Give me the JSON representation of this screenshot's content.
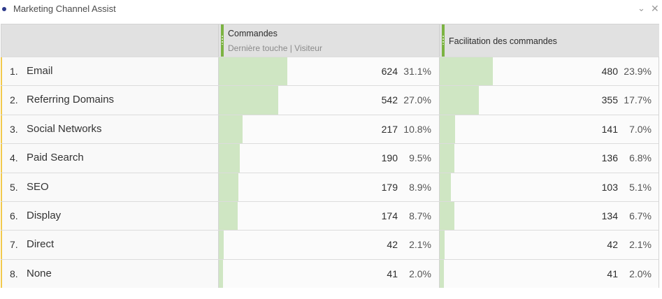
{
  "panel": {
    "title": "Marketing Channel Assist",
    "collapse_icon": "chevron-down-icon",
    "close_icon": "close-icon"
  },
  "columns": [
    {
      "title": "Commandes",
      "subtitle": "Dernière touche | Visiteur"
    },
    {
      "title": "Facilitation des commandes",
      "subtitle": ""
    }
  ],
  "colors": {
    "bar": "#cfe6c3",
    "accent": "#7cb342",
    "row_marker": "#f2c94c"
  },
  "rows": [
    {
      "rank": "1.",
      "label": "Email",
      "m1": "624",
      "m1_pct": "31.1%",
      "m2": "480",
      "m2_pct": "23.9%",
      "m1_share": 0.311,
      "m2_share": 0.239
    },
    {
      "rank": "2.",
      "label": "Referring Domains",
      "m1": "542",
      "m1_pct": "27.0%",
      "m2": "355",
      "m2_pct": "17.7%",
      "m1_share": 0.27,
      "m2_share": 0.177
    },
    {
      "rank": "3.",
      "label": "Social Networks",
      "m1": "217",
      "m1_pct": "10.8%",
      "m2": "141",
      "m2_pct": "7.0%",
      "m1_share": 0.108,
      "m2_share": 0.07
    },
    {
      "rank": "4.",
      "label": "Paid Search",
      "m1": "190",
      "m1_pct": "9.5%",
      "m2": "136",
      "m2_pct": "6.8%",
      "m1_share": 0.095,
      "m2_share": 0.068
    },
    {
      "rank": "5.",
      "label": "SEO",
      "m1": "179",
      "m1_pct": "8.9%",
      "m2": "103",
      "m2_pct": "5.1%",
      "m1_share": 0.089,
      "m2_share": 0.051
    },
    {
      "rank": "6.",
      "label": "Display",
      "m1": "174",
      "m1_pct": "8.7%",
      "m2": "134",
      "m2_pct": "6.7%",
      "m1_share": 0.087,
      "m2_share": 0.067
    },
    {
      "rank": "7.",
      "label": "Direct",
      "m1": "42",
      "m1_pct": "2.1%",
      "m2": "42",
      "m2_pct": "2.1%",
      "m1_share": 0.021,
      "m2_share": 0.021
    },
    {
      "rank": "8.",
      "label": "None",
      "m1": "41",
      "m1_pct": "2.0%",
      "m2": "41",
      "m2_pct": "2.0%",
      "m1_share": 0.02,
      "m2_share": 0.02
    }
  ]
}
